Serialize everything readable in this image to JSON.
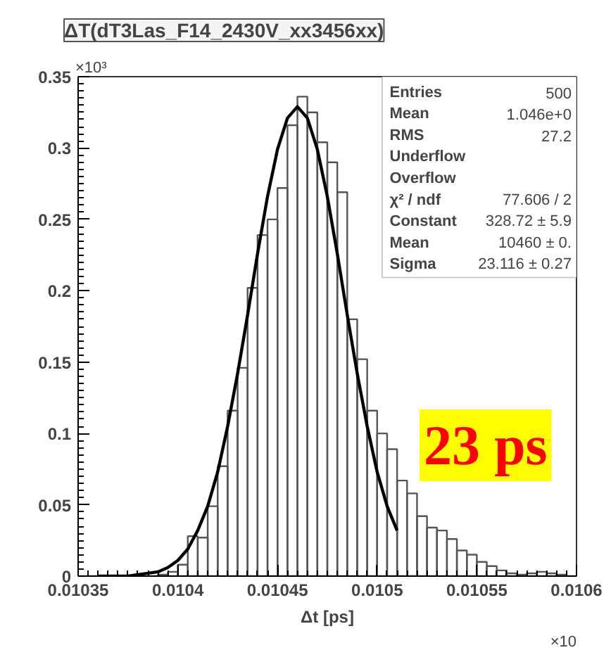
{
  "chart_data": {
    "type": "histogram",
    "title": "ΔT(dT3Las_F14_2430V_xx3456xx)",
    "xlabel": "Δt [ps]",
    "bins": [
      0.01035,
      0.010355,
      0.01036,
      0.010365,
      0.01037,
      0.010375,
      0.01038,
      0.010385,
      0.01039,
      0.010395,
      0.0104,
      0.010405,
      0.01041,
      0.010415,
      0.01042,
      0.010425,
      0.01043,
      0.010435,
      0.01044,
      0.010445,
      0.01045,
      0.010455,
      0.01046,
      0.010465,
      0.01047,
      0.010475,
      0.01048,
      0.010485,
      0.01049,
      0.010495,
      0.0105,
      0.010505,
      0.01051,
      0.010515,
      0.01052,
      0.010525,
      0.01053,
      0.010535,
      0.01054,
      0.010545,
      0.01055,
      0.010555,
      0.01056,
      0.010565,
      0.01057,
      0.010575,
      0.01058,
      0.010585,
      0.01059,
      0.010595,
      0.0106
    ],
    "values": [
      0,
      0,
      0,
      0,
      0,
      0,
      0,
      0,
      0.001,
      0.003,
      0.008,
      0.028,
      0.027,
      0.049,
      0.077,
      0.116,
      0.146,
      0.202,
      0.239,
      0.25,
      0.272,
      0.316,
      0.336,
      0.325,
      0.304,
      0.29,
      0.269,
      0.18,
      0.152,
      0.116,
      0.1,
      0.089,
      0.067,
      0.058,
      0.042,
      0.034,
      0.032,
      0.026,
      0.018,
      0.015,
      0.01,
      0.007,
      0.004,
      0.002,
      0.001,
      0.002,
      0.003,
      0.002,
      0.001,
      0
    ],
    "color": "#555555",
    "series": [
      {
        "type": "line",
        "color": "#000000",
        "x": [
          0.01036,
          0.010365,
          0.01037,
          0.010375,
          0.01038,
          0.010385,
          0.01039,
          0.010395,
          0.0104,
          0.010405,
          0.01041,
          0.010415,
          0.01042,
          0.010425,
          0.01043,
          0.010435,
          0.01044,
          0.010445,
          0.01045,
          0.010455,
          0.01046,
          0.010465,
          0.01047,
          0.010475,
          0.01048,
          0.010485,
          0.01049,
          0.010495,
          0.0105,
          0.010505,
          0.01051
        ],
        "values": [
          0,
          0,
          0,
          0,
          0.001,
          0.002,
          0.003,
          0.006,
          0.011,
          0.019,
          0.032,
          0.049,
          0.073,
          0.105,
          0.142,
          0.183,
          0.226,
          0.266,
          0.299,
          0.321,
          0.329,
          0.321,
          0.299,
          0.266,
          0.226,
          0.183,
          0.142,
          0.105,
          0.073,
          0.049,
          0.032
        ]
      }
    ],
    "xlim": [
      0.01035,
      0.0106
    ],
    "ylim": [
      0,
      0.35
    ],
    "xticks": [
      0.01035,
      0.0104,
      0.01045,
      0.0105,
      0.01055,
      0.0106
    ],
    "yticks": [
      0,
      0.05,
      0.1,
      0.15,
      0.2,
      0.25,
      0.3,
      0.35
    ],
    "grid": false,
    "annotations": [
      "Entries",
      "500",
      "Mean",
      "1.046e+0",
      "RMS",
      "27.2",
      "Underflow",
      "Overflow",
      "χ² / ndf",
      "77.606 / 2",
      "Constant",
      "328.72 ± 5.9",
      "Mean",
      "10460 ± 0.",
      "Sigma",
      "23.116 ± 0.27",
      "23 ps",
      "×10³",
      "×10"
    ]
  }
}
